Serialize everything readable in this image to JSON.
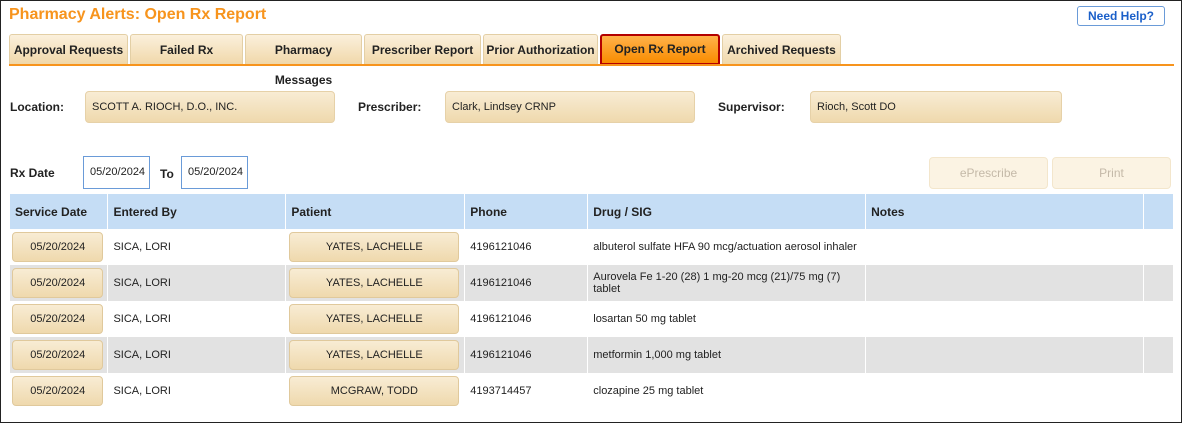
{
  "title": "Pharmacy Alerts: Open Rx Report",
  "help_label": "Need Help?",
  "tabs": [
    {
      "label": "Approval Requests"
    },
    {
      "label": "Failed Rx"
    },
    {
      "label": "Pharmacy Messages"
    },
    {
      "label": "Prescriber Report"
    },
    {
      "label": "Prior Authorization"
    },
    {
      "label": "Open Rx Report",
      "active": true
    },
    {
      "label": "Archived Requests"
    }
  ],
  "filters": {
    "location_label": "Location:",
    "location": "SCOTT A. RIOCH, D.O., INC.",
    "prescriber_label": "Prescriber:",
    "prescriber": "Clark, Lindsey CRNP",
    "supervisor_label": "Supervisor:",
    "supervisor": "Rioch, Scott DO",
    "rx_date_label": "Rx Date",
    "from": "05/20/2024",
    "to_label": "To",
    "to": "05/20/2024"
  },
  "actions": {
    "eprescribe": "ePrescribe",
    "print": "Print"
  },
  "table": {
    "headers": [
      "Service Date",
      "Entered By",
      "Patient",
      "Phone",
      "Drug / SIG",
      "Notes",
      ""
    ],
    "rows": [
      {
        "date": "05/20/2024",
        "entered_by": "SICA, LORI",
        "patient": "YATES, LACHELLE",
        "phone": "4196121046",
        "drug": "albuterol sulfate HFA 90 mcg/actuation aerosol inhaler",
        "notes": ""
      },
      {
        "date": "05/20/2024",
        "entered_by": "SICA, LORI",
        "patient": "YATES, LACHELLE",
        "phone": "4196121046",
        "drug": "Aurovela Fe 1-20 (28) 1 mg-20 mcg (21)/75 mg (7) tablet",
        "notes": ""
      },
      {
        "date": "05/20/2024",
        "entered_by": "SICA, LORI",
        "patient": "YATES, LACHELLE",
        "phone": "4196121046",
        "drug": "losartan 50 mg tablet",
        "notes": ""
      },
      {
        "date": "05/20/2024",
        "entered_by": "SICA, LORI",
        "patient": "YATES, LACHELLE",
        "phone": "4196121046",
        "drug": "metformin 1,000 mg tablet",
        "notes": ""
      },
      {
        "date": "05/20/2024",
        "entered_by": "SICA, LORI",
        "patient": "MCGRAW, TODD",
        "phone": "4193714457",
        "drug": "clozapine 25 mg tablet",
        "notes": ""
      }
    ]
  }
}
